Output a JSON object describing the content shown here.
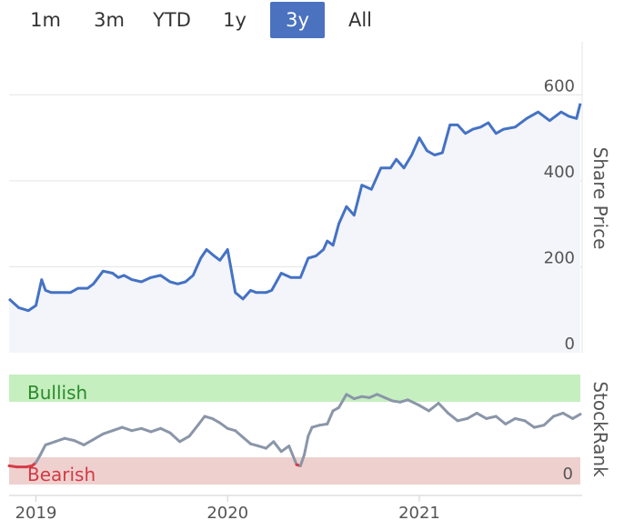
{
  "range_selector": {
    "buttons": [
      "1m",
      "3m",
      "YTD",
      "1y",
      "3y",
      "All"
    ],
    "active": "3y"
  },
  "colors": {
    "accent": "#4a72bf",
    "price_line": "#4472c4",
    "price_fill": "#f3f5fa",
    "rank_line": "#8a96a8",
    "bearish_line": "#d63b48",
    "bullish_band": "#c6efc0",
    "bearish_band": "#eed1cf",
    "bullish_text": "#2a8a2a",
    "bearish_text": "#d33a45"
  },
  "chart_data": [
    {
      "type": "area",
      "ylabel": "Share Price",
      "ylim": [
        0,
        700
      ],
      "yticks": [
        0,
        200,
        400,
        600
      ],
      "grid": true,
      "x_ticks": [
        {
          "label": "2019",
          "date": "2019.00"
        },
        {
          "label": "2020",
          "date": "2020.00"
        },
        {
          "label": "2021",
          "date": "2021.00"
        }
      ],
      "series": [
        {
          "x": [
            2018.86,
            2018.91,
            2018.96,
            2019.0,
            2019.03,
            2019.05,
            2019.08,
            2019.12,
            2019.18,
            2019.22,
            2019.27,
            2019.3,
            2019.35,
            2019.4,
            2019.43,
            2019.46,
            2019.5,
            2019.55,
            2019.6,
            2019.65,
            2019.7,
            2019.74,
            2019.78,
            2019.82,
            2019.86,
            2019.89,
            2019.93,
            2019.96,
            2020.0,
            2020.04,
            2020.08,
            2020.12,
            2020.15,
            2020.2,
            2020.23,
            2020.28,
            2020.33,
            2020.38,
            2020.42,
            2020.46,
            2020.5,
            2020.52,
            2020.55,
            2020.58,
            2020.62,
            2020.66,
            2020.7,
            2020.75,
            2020.8,
            2020.85,
            2020.88,
            2020.92,
            2020.96,
            2021.0,
            2021.04,
            2021.08,
            2021.12,
            2021.16,
            2021.2,
            2021.24,
            2021.28,
            2021.32,
            2021.36,
            2021.4,
            2021.44,
            2021.5,
            2021.56,
            2021.62,
            2021.68,
            2021.74,
            2021.78,
            2021.82,
            2021.84
          ],
          "values": [
            125,
            105,
            98,
            110,
            170,
            145,
            140,
            140,
            140,
            150,
            150,
            160,
            190,
            185,
            175,
            180,
            170,
            165,
            175,
            180,
            165,
            160,
            165,
            180,
            220,
            240,
            225,
            215,
            240,
            140,
            125,
            145,
            140,
            140,
            145,
            185,
            175,
            175,
            220,
            225,
            240,
            260,
            250,
            300,
            340,
            320,
            390,
            380,
            430,
            430,
            450,
            430,
            460,
            500,
            470,
            460,
            465,
            530,
            530,
            510,
            520,
            525,
            535,
            510,
            520,
            525,
            545,
            560,
            540,
            560,
            550,
            545,
            580
          ]
        }
      ]
    },
    {
      "type": "line",
      "ylabel": "StockRank",
      "ylim": [
        0,
        100
      ],
      "yticks": [
        0
      ],
      "bands": [
        {
          "label": "Bullish",
          "from": 80,
          "to": 100
        },
        {
          "label": "Bearish",
          "from": 0,
          "to": 20
        }
      ],
      "series": [
        {
          "x": [
            2018.86,
            2018.9,
            2018.95,
            2018.98,
            2019.0,
            2019.02,
            2019.05,
            2019.1,
            2019.15,
            2019.2,
            2019.25,
            2019.3,
            2019.35,
            2019.4,
            2019.45,
            2019.5,
            2019.55,
            2019.6,
            2019.65,
            2019.7,
            2019.75,
            2019.8,
            2019.85,
            2019.88,
            2019.92,
            2019.96,
            2020.0,
            2020.04,
            2020.08,
            2020.12,
            2020.16,
            2020.2,
            2020.24,
            2020.28,
            2020.32,
            2020.36,
            2020.38,
            2020.4,
            2020.42,
            2020.44,
            2020.48,
            2020.52,
            2020.55,
            2020.58,
            2020.62,
            2020.66,
            2020.7,
            2020.74,
            2020.78,
            2020.82,
            2020.86,
            2020.9,
            2020.94,
            2021.0,
            2021.05,
            2021.1,
            2021.15,
            2021.2,
            2021.25,
            2021.3,
            2021.35,
            2021.4,
            2021.45,
            2021.5,
            2021.55,
            2021.6,
            2021.65,
            2021.7,
            2021.75,
            2021.8,
            2021.84
          ],
          "values": [
            17,
            16,
            16,
            17,
            20,
            26,
            36,
            39,
            42,
            40,
            36,
            41,
            46,
            49,
            52,
            49,
            51,
            48,
            51,
            47,
            39,
            44,
            55,
            62,
            60,
            56,
            51,
            49,
            43,
            37,
            35,
            33,
            39,
            30,
            35,
            18,
            17,
            27,
            44,
            52,
            54,
            55,
            67,
            70,
            82,
            78,
            80,
            79,
            82,
            79,
            76,
            75,
            77,
            72,
            67,
            74,
            65,
            58,
            60,
            65,
            60,
            62,
            55,
            60,
            58,
            52,
            54,
            62,
            65,
            60,
            64
          ]
        }
      ]
    }
  ]
}
